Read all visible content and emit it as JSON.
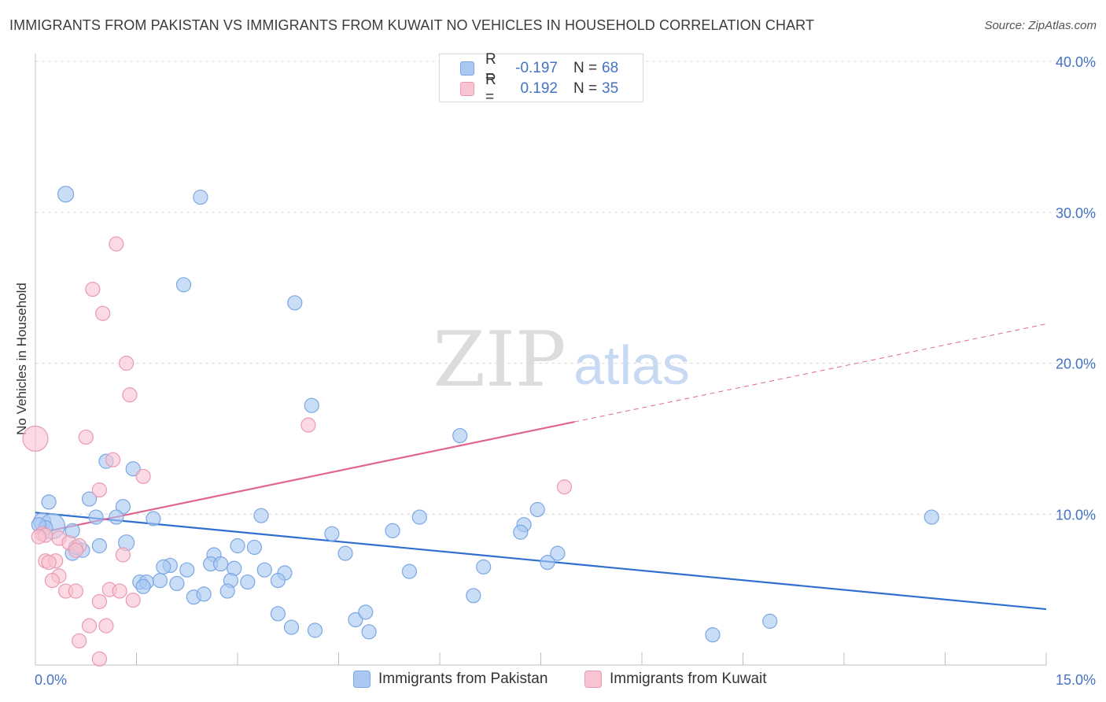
{
  "title": "IMMIGRANTS FROM PAKISTAN VS IMMIGRANTS FROM KUWAIT NO VEHICLES IN HOUSEHOLD CORRELATION CHART",
  "source": "Source: ZipAtlas.com",
  "watermark": {
    "zip": "ZIP",
    "atlas": "atlas"
  },
  "legend_stats": [
    {
      "r_label": "R =",
      "r_value": "-0.197",
      "n_label": "N =",
      "n_value": "68",
      "color": "#aac8f2",
      "border": "#7aa7e4"
    },
    {
      "r_label": "R =",
      "r_value": "0.192",
      "n_label": "N =",
      "n_value": "35",
      "color": "#f8c4d2",
      "border": "#e99ab2"
    }
  ],
  "chart_data": {
    "type": "scatter",
    "title": "IMMIGRANTS FROM PAKISTAN VS IMMIGRANTS FROM KUWAIT NO VEHICLES IN HOUSEHOLD CORRELATION CHART",
    "xlabel": "",
    "ylabel": "No Vehicles in Household",
    "xlim": [
      0,
      15
    ],
    "ylim": [
      0,
      40
    ],
    "x_tick_labels": [
      "0.0%",
      "15.0%"
    ],
    "y_ticks": [
      10,
      20,
      30,
      40
    ],
    "y_tick_labels": [
      "10.0%",
      "20.0%",
      "30.0%",
      "40.0%"
    ],
    "grid": true,
    "legend_position": "bottom",
    "series": [
      {
        "name": "Immigrants from Pakistan",
        "color": "#aac8f2",
        "edge": "#7aa7e4",
        "line_color": "#2f6fcf",
        "trend": {
          "x0": 0,
          "y0": 10.1,
          "x1": 15,
          "y1": 3.7,
          "dashed_from": null
        },
        "points": [
          [
            0.45,
            31.2
          ],
          [
            2.45,
            31.0
          ],
          [
            2.2,
            25.2
          ],
          [
            3.85,
            24.0
          ],
          [
            4.1,
            17.2
          ],
          [
            6.3,
            15.2
          ],
          [
            1.05,
            13.5
          ],
          [
            1.45,
            13.0
          ],
          [
            0.2,
            10.8
          ],
          [
            0.8,
            11.0
          ],
          [
            1.3,
            10.5
          ],
          [
            0.1,
            9.5
          ],
          [
            0.25,
            9.2
          ],
          [
            0.9,
            9.8
          ],
          [
            1.2,
            9.8
          ],
          [
            1.75,
            9.7
          ],
          [
            3.35,
            9.9
          ],
          [
            5.7,
            9.8
          ],
          [
            7.25,
            9.3
          ],
          [
            7.2,
            8.8
          ],
          [
            7.45,
            10.3
          ],
          [
            13.3,
            9.8
          ],
          [
            0.55,
            8.9
          ],
          [
            0.95,
            7.9
          ],
          [
            1.35,
            8.1
          ],
          [
            0.7,
            7.6
          ],
          [
            0.55,
            7.4
          ],
          [
            3.0,
            7.9
          ],
          [
            3.25,
            7.8
          ],
          [
            2.65,
            7.3
          ],
          [
            4.4,
            8.7
          ],
          [
            5.3,
            8.9
          ],
          [
            4.6,
            7.4
          ],
          [
            2.6,
            6.7
          ],
          [
            2.75,
            6.7
          ],
          [
            2.0,
            6.6
          ],
          [
            1.9,
            6.5
          ],
          [
            2.25,
            6.3
          ],
          [
            2.95,
            6.4
          ],
          [
            3.4,
            6.3
          ],
          [
            3.7,
            6.1
          ],
          [
            5.55,
            6.2
          ],
          [
            6.65,
            6.5
          ],
          [
            7.6,
            6.8
          ],
          [
            7.75,
            7.4
          ],
          [
            1.55,
            5.5
          ],
          [
            1.65,
            5.5
          ],
          [
            1.85,
            5.6
          ],
          [
            2.1,
            5.4
          ],
          [
            2.9,
            5.6
          ],
          [
            3.15,
            5.5
          ],
          [
            3.6,
            5.6
          ],
          [
            1.6,
            5.2
          ],
          [
            2.35,
            4.5
          ],
          [
            2.5,
            4.7
          ],
          [
            2.85,
            4.9
          ],
          [
            6.5,
            4.6
          ],
          [
            3.6,
            3.4
          ],
          [
            4.75,
            3.0
          ],
          [
            4.9,
            3.5
          ],
          [
            3.8,
            2.5
          ],
          [
            4.15,
            2.3
          ],
          [
            4.95,
            2.2
          ],
          [
            10.05,
            2.0
          ],
          [
            10.9,
            2.9
          ],
          [
            0.15,
            9.1
          ],
          [
            0.05,
            9.3
          ],
          [
            0.6,
            7.8
          ]
        ],
        "sizes": {
          "0": 10,
          "12": 16,
          "11": 11,
          "24": 10
        }
      },
      {
        "name": "Immigrants from Kuwait",
        "color": "#f8c4d2",
        "edge": "#e99ab2",
        "line_color": "#e0668f",
        "trend": {
          "x0": 0,
          "y0": 8.7,
          "x1": 15,
          "y1": 22.6,
          "dashed_from": 8.0
        },
        "points": [
          [
            1.2,
            27.9
          ],
          [
            0.85,
            24.9
          ],
          [
            1.0,
            23.3
          ],
          [
            1.35,
            20.0
          ],
          [
            1.4,
            17.9
          ],
          [
            4.05,
            15.9
          ],
          [
            0.0,
            15.0
          ],
          [
            0.75,
            15.1
          ],
          [
            1.15,
            13.6
          ],
          [
            1.6,
            12.5
          ],
          [
            0.95,
            11.6
          ],
          [
            7.85,
            11.8
          ],
          [
            0.1,
            8.7
          ],
          [
            0.15,
            8.6
          ],
          [
            0.35,
            8.4
          ],
          [
            0.5,
            8.1
          ],
          [
            0.65,
            7.9
          ],
          [
            0.6,
            7.6
          ],
          [
            1.3,
            7.3
          ],
          [
            0.15,
            6.9
          ],
          [
            0.3,
            6.9
          ],
          [
            0.35,
            5.9
          ],
          [
            0.25,
            5.6
          ],
          [
            0.45,
            4.9
          ],
          [
            0.6,
            4.9
          ],
          [
            1.1,
            5.0
          ],
          [
            1.25,
            4.9
          ],
          [
            0.95,
            4.2
          ],
          [
            1.45,
            4.3
          ],
          [
            0.8,
            2.6
          ],
          [
            1.05,
            2.6
          ],
          [
            0.65,
            1.6
          ],
          [
            0.95,
            0.4
          ],
          [
            0.2,
            6.8
          ],
          [
            0.05,
            8.5
          ]
        ],
        "sizes": {
          "6": 16
        }
      }
    ]
  },
  "bottom_legend": [
    "Immigrants from Pakistan",
    "Immigrants from Kuwait"
  ]
}
